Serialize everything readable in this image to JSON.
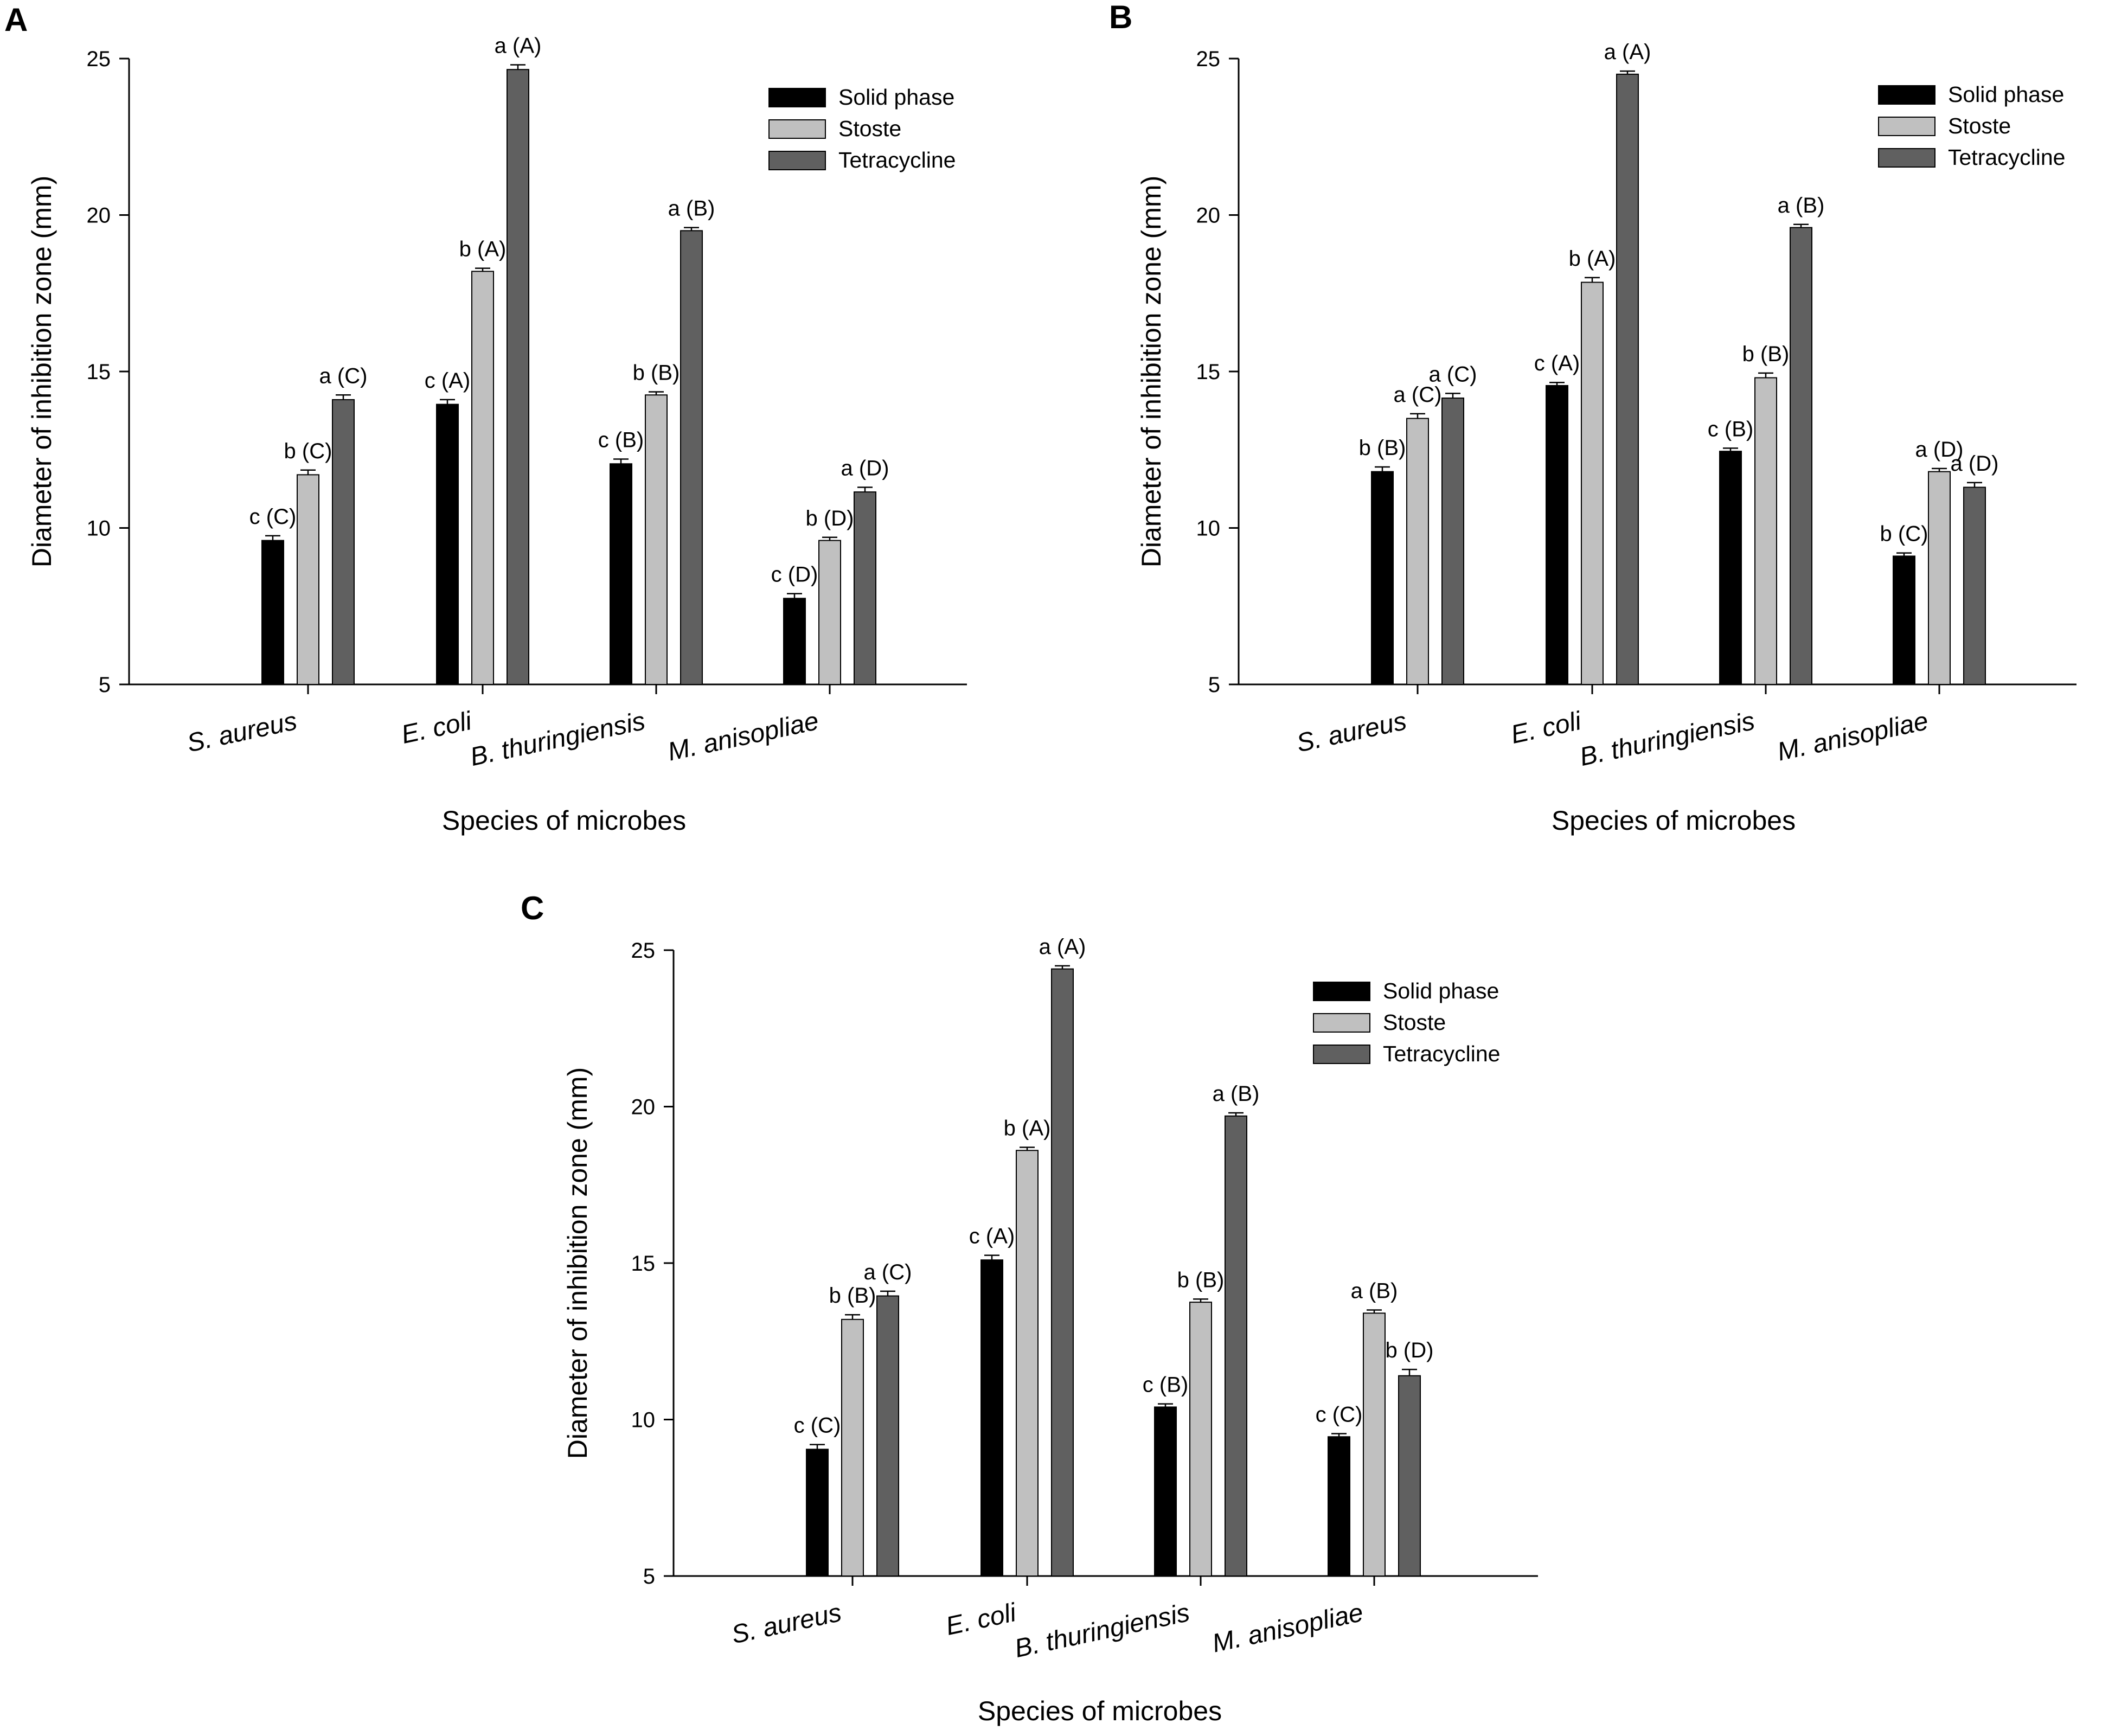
{
  "series_colors": {
    "Solid phase": "#000000",
    "Stoste": "#c0c0c0",
    "Tetracycline": "#606060"
  },
  "chart_data": [
    {
      "panel": "A",
      "type": "bar",
      "xlabel": "Species of microbes",
      "ylabel": "Diameter of inhibition zone (mm)",
      "ylim": [
        5,
        25
      ],
      "yticks": [
        5,
        10,
        15,
        20,
        25
      ],
      "categories": [
        "S. aureus",
        "E. coli",
        "B. thuringiensis",
        "M. anisopliae"
      ],
      "legend": [
        "Solid phase",
        "Stoste",
        "Tetracycline"
      ],
      "series": [
        {
          "name": "Solid phase",
          "values": [
            9.6,
            13.95,
            12.05,
            7.75
          ],
          "errors": [
            0.15,
            0.15,
            0.15,
            0.15
          ],
          "labels": [
            "c (C)",
            "c (A)",
            "c (B)",
            "c (D)"
          ]
        },
        {
          "name": "Stoste",
          "values": [
            11.7,
            18.2,
            14.25,
            9.6
          ],
          "errors": [
            0.15,
            0.1,
            0.1,
            0.1
          ],
          "labels": [
            "b (C)",
            "b (A)",
            "b (B)",
            "b (D)"
          ]
        },
        {
          "name": "Tetracycline",
          "values": [
            14.1,
            24.65,
            19.5,
            11.15
          ],
          "errors": [
            0.15,
            0.15,
            0.1,
            0.15
          ],
          "labels": [
            "a (C)",
            "a (A)",
            "a (B)",
            "a (D)"
          ]
        }
      ]
    },
    {
      "panel": "B",
      "type": "bar",
      "xlabel": "Species of microbes",
      "ylabel": "Diameter of inhibition zone (mm)",
      "ylim": [
        5,
        25
      ],
      "yticks": [
        5,
        10,
        15,
        20,
        25
      ],
      "categories": [
        "S. aureus",
        "E. coli",
        "B. thuringiensis",
        "M. anisopliae"
      ],
      "legend": [
        "Solid phase",
        "Stoste",
        "Tetracycline"
      ],
      "series": [
        {
          "name": "Solid phase",
          "values": [
            11.8,
            14.55,
            12.45,
            9.1
          ],
          "errors": [
            0.15,
            0.1,
            0.1,
            0.1
          ],
          "labels": [
            "b (B)",
            "c (A)",
            "c (B)",
            "b (C)"
          ]
        },
        {
          "name": "Stoste",
          "values": [
            13.5,
            17.85,
            14.8,
            11.8
          ],
          "errors": [
            0.15,
            0.15,
            0.15,
            0.1
          ],
          "labels": [
            "a (C)",
            "b (A)",
            "b (B)",
            "a (D)"
          ]
        },
        {
          "name": "Tetracycline",
          "values": [
            14.15,
            24.5,
            19.6,
            11.3
          ],
          "errors": [
            0.15,
            0.1,
            0.1,
            0.15
          ],
          "labels": [
            "a (C)",
            "a (A)",
            "a (B)",
            "a (D)"
          ]
        }
      ]
    },
    {
      "panel": "C",
      "type": "bar",
      "xlabel": "Species of microbes",
      "ylabel": "Diameter of inhibition zone (mm)",
      "ylim": [
        5,
        25
      ],
      "yticks": [
        5,
        10,
        15,
        20,
        25
      ],
      "categories": [
        "S. aureus",
        "E. coli",
        "B. thuringiensis",
        "M. anisopliae"
      ],
      "legend": [
        "Solid phase",
        "Stoste",
        "Tetracycline"
      ],
      "series": [
        {
          "name": "Solid phase",
          "values": [
            9.05,
            15.1,
            10.4,
            9.45
          ],
          "errors": [
            0.15,
            0.15,
            0.1,
            0.1
          ],
          "labels": [
            "c (C)",
            "c (A)",
            "c (B)",
            "c (C)"
          ]
        },
        {
          "name": "Stoste",
          "values": [
            13.2,
            18.6,
            13.75,
            13.4
          ],
          "errors": [
            0.15,
            0.1,
            0.1,
            0.1
          ],
          "labels": [
            "b (B)",
            "b (A)",
            "b (B)",
            "a (B)"
          ]
        },
        {
          "name": "Tetracycline",
          "values": [
            13.95,
            24.4,
            19.7,
            11.4
          ],
          "errors": [
            0.15,
            0.1,
            0.1,
            0.2
          ],
          "labels": [
            "a (C)",
            "a (A)",
            "a (B)",
            "b (D)"
          ]
        }
      ]
    }
  ]
}
